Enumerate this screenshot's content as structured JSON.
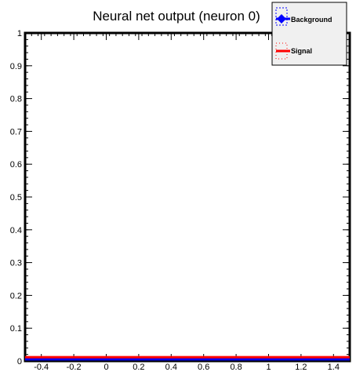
{
  "chart_data": {
    "type": "line",
    "title": "Neural net output (neuron 0)",
    "xlabel": "",
    "ylabel": "",
    "xlim": [
      -0.5,
      1.5
    ],
    "ylim": [
      0,
      1
    ],
    "x_ticks": [
      -0.4,
      -0.2,
      0,
      0.2,
      0.4,
      0.6,
      0.8,
      1,
      1.2,
      1.4
    ],
    "y_ticks": [
      0,
      0.1,
      0.2,
      0.3,
      0.4,
      0.5,
      0.6,
      0.7,
      0.8,
      0.9,
      1
    ],
    "grid": false,
    "legend_position": "top-right",
    "series": [
      {
        "name": "Background",
        "color": "#0000ff",
        "x": [
          -0.5,
          1.5
        ],
        "y": [
          0.005,
          0.005
        ]
      },
      {
        "name": "Signal",
        "color": "#ff0000",
        "x": [
          -0.5,
          1.5
        ],
        "y": [
          0.007,
          0.007
        ]
      }
    ]
  }
}
